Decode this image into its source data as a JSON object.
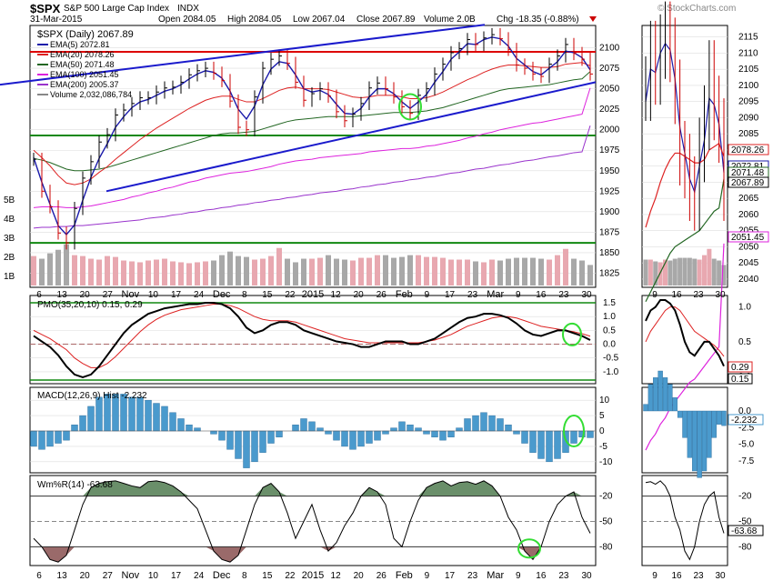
{
  "header": {
    "symbol": "$SPX",
    "name": "S&P 500 Large Cap Index",
    "exchange": "INDX",
    "date": "31-Mar-2015",
    "watermark": "© StockCharts.com",
    "quote": {
      "open": "Open 2084.05",
      "high": "High 2084.05",
      "low": "Low 2067.04",
      "close": "Close 2067.89",
      "volume": "Volume 2.0B",
      "change": "Chg -18.35 (-0.88%)"
    }
  },
  "colors": {
    "ema5": "#1a1aaa",
    "ema20": "#dd2222",
    "ema50": "#226622",
    "ema100": "#dd22dd",
    "ema200": "#9933cc",
    "trendline": "#1a1acc",
    "hline_red": "#dd0000",
    "hline_green": "#118811",
    "volume_up": "#e8a8b0",
    "volume_down": "#a8a8a8",
    "macd_hist": "#4a9acd",
    "wmr_fill": "#6a8f6a",
    "wmr_fill_low": "#9a6a6a",
    "highlight": "#33dd33",
    "panel_bg": "#ffffff"
  },
  "chart_data": [
    {
      "type": "line",
      "panel": "price",
      "title": "$SPX (Daily) 2067.89",
      "legend": [
        {
          "name": "EMA(5) 2072.81",
          "color": "#1a1aaa"
        },
        {
          "name": "EMA(20) 2078.26",
          "color": "#dd2222"
        },
        {
          "name": "EMA(50) 2071.48",
          "color": "#226622"
        },
        {
          "name": "EMA(100) 2051.45",
          "color": "#dd22dd"
        },
        {
          "name": "EMA(200) 2005.37",
          "color": "#9933cc"
        },
        {
          "name": "Volume 2,032,086,784",
          "color": "#888888"
        }
      ],
      "ylim": [
        1810,
        2125
      ],
      "y_ticks": [
        1825,
        1850,
        1875,
        1900,
        1925,
        1950,
        1975,
        2000,
        2025,
        2050,
        2075,
        2100
      ],
      "volume_ticks": [
        "1B",
        "2B",
        "3B",
        "4B",
        "5B"
      ],
      "x_labels": [
        "6",
        "13",
        "20",
        "27",
        "Nov",
        "10",
        "17",
        "24",
        "Dec",
        "8",
        "15",
        "22",
        "2015",
        "12",
        "20",
        "26",
        "Feb",
        "9",
        "17",
        "23",
        "Mar",
        "9",
        "16",
        "23",
        "30"
      ],
      "series": [
        {
          "name": "Close",
          "values": [
            1964,
            1925,
            1906,
            1874,
            1862,
            1904,
            1941,
            1961,
            1985,
            1994,
            2018,
            2024,
            2032,
            2039,
            2039,
            2046,
            2051,
            2052,
            2058,
            2067,
            2072,
            2075,
            2069,
            2060,
            2035,
            2003,
            2000,
            2040,
            2075,
            2086,
            2090,
            2081,
            2058,
            2036,
            2044,
            2050,
            2041,
            2022,
            2011,
            2019,
            2032,
            2051,
            2057,
            2050,
            2040,
            2028,
            2020,
            2042,
            2050,
            2068,
            2080,
            2094,
            2099,
            2110,
            2104,
            2112,
            2116,
            2111,
            2098,
            2079,
            2075,
            2068,
            2065,
            2080,
            2090,
            2104,
            2093,
            2086,
            2068
          ]
        },
        {
          "name": "EMA(5)",
          "values": [
            1966,
            1936,
            1909,
            1883,
            1872,
            1884,
            1914,
            1942,
            1965,
            1983,
            2003,
            2016,
            2027,
            2034,
            2037,
            2042,
            2047,
            2050,
            2055,
            2062,
            2068,
            2072,
            2070,
            2063,
            2047,
            2025,
            2013,
            2029,
            2055,
            2074,
            2083,
            2081,
            2067,
            2050,
            2046,
            2048,
            2043,
            2031,
            2020,
            2019,
            2026,
            2040,
            2050,
            2050,
            2044,
            2034,
            2026,
            2034,
            2043,
            2058,
            2071,
            2086,
            2095,
            2105,
            2104,
            2110,
            2113,
            2111,
            2102,
            2087,
            2079,
            2071,
            2067,
            2075,
            2083,
            2096,
            2094,
            2088,
            2073
          ]
        },
        {
          "name": "EMA(20)",
          "values": [
            1975,
            1966,
            1956,
            1944,
            1935,
            1933,
            1935,
            1940,
            1948,
            1955,
            1964,
            1972,
            1980,
            1988,
            1995,
            2002,
            2008,
            2014,
            2020,
            2026,
            2031,
            2036,
            2039,
            2041,
            2041,
            2037,
            2034,
            2034,
            2038,
            2043,
            2048,
            2051,
            2052,
            2050,
            2050,
            2050,
            2049,
            2046,
            2043,
            2040,
            2039,
            2040,
            2042,
            2042,
            2042,
            2040,
            2038,
            2038,
            2039,
            2042,
            2046,
            2051,
            2056,
            2061,
            2065,
            2070,
            2074,
            2077,
            2079,
            2079,
            2078,
            2077,
            2076,
            2076,
            2077,
            2080,
            2081,
            2082,
            2078
          ]
        },
        {
          "name": "EMA(50)",
          "values": [
            1965,
            1963,
            1960,
            1956,
            1952,
            1950,
            1950,
            1951,
            1952,
            1954,
            1957,
            1960,
            1963,
            1966,
            1969,
            1972,
            1975,
            1978,
            1981,
            1984,
            1987,
            1990,
            1993,
            1995,
            1996,
            1996,
            1997,
            1998,
            2001,
            2004,
            2007,
            2010,
            2012,
            2013,
            2014,
            2015,
            2016,
            2016,
            2016,
            2016,
            2017,
            2018,
            2019,
            2020,
            2021,
            2021,
            2021,
            2022,
            2023,
            2025,
            2027,
            2030,
            2033,
            2036,
            2039,
            2042,
            2045,
            2048,
            2050,
            2051,
            2052,
            2053,
            2054,
            2055,
            2057,
            2059,
            2061,
            2062,
            2071
          ]
        },
        {
          "name": "EMA(100)",
          "values": [
            1905,
            1906,
            1906,
            1906,
            1905,
            1905,
            1906,
            1907,
            1909,
            1911,
            1913,
            1915,
            1918,
            1920,
            1923,
            1925,
            1928,
            1930,
            1933,
            1936,
            1938,
            1941,
            1943,
            1945,
            1947,
            1948,
            1949,
            1951,
            1953,
            1955,
            1958,
            1960,
            1962,
            1963,
            1964,
            1966,
            1967,
            1968,
            1969,
            1970,
            1971,
            1973,
            1974,
            1975,
            1976,
            1977,
            1977,
            1978,
            1980,
            1981,
            1983,
            1985,
            1987,
            1990,
            1992,
            1995,
            1997,
            2000,
            2002,
            2004,
            2006,
            2008,
            2009,
            2011,
            2013,
            2015,
            2017,
            2019,
            2051
          ]
        },
        {
          "name": "EMA(200)",
          "values": [
            1880,
            1881,
            1881,
            1882,
            1882,
            1883,
            1883,
            1884,
            1885,
            1886,
            1887,
            1888,
            1889,
            1890,
            1892,
            1893,
            1894,
            1896,
            1897,
            1899,
            1900,
            1902,
            1903,
            1905,
            1906,
            1908,
            1909,
            1911,
            1912,
            1914,
            1915,
            1917,
            1918,
            1920,
            1921,
            1923,
            1924,
            1925,
            1927,
            1928,
            1930,
            1931,
            1933,
            1934,
            1936,
            1937,
            1939,
            1940,
            1942,
            1943,
            1945,
            1947,
            1948,
            1950,
            1952,
            1953,
            1955,
            1957,
            1958,
            1960,
            1962,
            1963,
            1965,
            1967,
            1968,
            1970,
            1972,
            1973,
            2005
          ]
        }
      ],
      "volume": [
        3.3,
        3.0,
        3.6,
        4.0,
        4.6,
        3.4,
        3.3,
        3.0,
        2.9,
        3.3,
        3.2,
        2.8,
        2.7,
        2.6,
        2.8,
        2.9,
        3.0,
        2.7,
        2.6,
        2.5,
        2.6,
        2.7,
        2.8,
        3.4,
        3.8,
        3.3,
        3.2,
        2.9,
        3.0,
        3.3,
        4.2,
        3.0,
        2.6,
        3.0,
        3.0,
        3.1,
        3.4,
        3.0,
        2.9,
        2.8,
        3.1,
        3.1,
        3.4,
        3.4,
        3.1,
        3.2,
        3.4,
        3.4,
        3.2,
        3.2,
        3.1,
        2.9,
        2.9,
        2.9,
        2.7,
        2.6,
        2.9,
        2.8,
        3.0,
        3.1,
        3.1,
        3.1,
        3.0,
        2.9,
        3.4,
        4.1,
        3.0,
        2.8,
        2.3
      ],
      "hlines": [
        2095,
        1993,
        1862
      ],
      "trendlines": [
        [
          [
            0,
            1925
          ],
          [
            41,
            2110
          ]
        ],
        [
          [
            0,
            2055
          ],
          [
            68,
            2115
          ]
        ]
      ]
    },
    {
      "type": "line",
      "panel": "pmo",
      "title": "PMO(35,20,10) 0.15, 0.29",
      "ylim": [
        -1.3,
        1.6
      ],
      "y_ticks": [
        1.5,
        1.0,
        0.5,
        0.0,
        -0.5,
        -1.0
      ],
      "series": [
        {
          "name": "PMO",
          "values": [
            0.3,
            0.1,
            -0.1,
            -0.4,
            -0.8,
            -1.1,
            -1.2,
            -1.1,
            -0.8,
            -0.4,
            0.0,
            0.4,
            0.7,
            0.9,
            1.1,
            1.2,
            1.3,
            1.35,
            1.4,
            1.45,
            1.45,
            1.5,
            1.5,
            1.45,
            1.3,
            1.0,
            0.6,
            0.4,
            0.5,
            0.7,
            0.8,
            0.8,
            0.7,
            0.5,
            0.4,
            0.3,
            0.2,
            0.1,
            0.05,
            0.0,
            -0.1,
            -0.1,
            0.0,
            0.1,
            0.1,
            0.1,
            0.0,
            0.0,
            0.1,
            0.2,
            0.4,
            0.6,
            0.8,
            0.95,
            1.0,
            1.1,
            1.1,
            1.05,
            0.95,
            0.75,
            0.5,
            0.35,
            0.3,
            0.4,
            0.5,
            0.5,
            0.4,
            0.3,
            0.15
          ]
        },
        {
          "name": "Signal",
          "values": [
            0.5,
            0.35,
            0.2,
            0.0,
            -0.2,
            -0.5,
            -0.7,
            -0.85,
            -0.85,
            -0.7,
            -0.45,
            -0.15,
            0.15,
            0.45,
            0.7,
            0.9,
            1.05,
            1.15,
            1.25,
            1.3,
            1.35,
            1.4,
            1.45,
            1.45,
            1.4,
            1.3,
            1.15,
            1.0,
            0.9,
            0.85,
            0.85,
            0.85,
            0.8,
            0.7,
            0.6,
            0.5,
            0.4,
            0.3,
            0.2,
            0.15,
            0.1,
            0.05,
            0.05,
            0.05,
            0.05,
            0.05,
            0.05,
            0.05,
            0.1,
            0.15,
            0.25,
            0.35,
            0.5,
            0.65,
            0.75,
            0.85,
            0.95,
            1.0,
            1.0,
            0.95,
            0.85,
            0.75,
            0.65,
            0.6,
            0.55,
            0.5,
            0.45,
            0.38,
            0.29
          ]
        }
      ],
      "hlines": [
        1.5,
        0.0,
        -1.3
      ]
    },
    {
      "type": "bar",
      "panel": "macd",
      "title": "MACD(12,26,9) Hist -2.232",
      "ylim": [
        -13,
        13
      ],
      "y_ticks": [
        10,
        5.0,
        0,
        -5.0,
        -10
      ],
      "values": [
        -5,
        -6,
        -5,
        -4,
        -3,
        2,
        5,
        8,
        11,
        12,
        12,
        12,
        11,
        11,
        10,
        9,
        8,
        6,
        4,
        2,
        1,
        0,
        -1,
        -3,
        -6,
        -9,
        -12,
        -10,
        -7,
        -4,
        -2,
        0,
        2,
        4,
        3,
        1,
        -1,
        -3,
        -5,
        -6,
        -5,
        -4,
        -3,
        -1,
        1,
        3,
        2,
        1,
        -1,
        -2,
        -3,
        -2,
        1,
        4,
        5,
        6,
        5,
        4,
        2,
        -1,
        -4,
        -7,
        -9,
        -10,
        -9,
        -7,
        -4,
        -2,
        -2.2
      ]
    },
    {
      "type": "line",
      "panel": "williams",
      "title": "Wm%R(14) -63.68",
      "ylim": [
        -100,
        0
      ],
      "y_ticks": [
        -20,
        -50,
        -80
      ],
      "series": [
        {
          "name": "Wm%R",
          "values": [
            -70,
            -80,
            -95,
            -98,
            -90,
            -60,
            -30,
            -10,
            -5,
            -3,
            -2,
            -5,
            -8,
            -10,
            -3,
            -2,
            -4,
            -8,
            -15,
            -25,
            -35,
            -60,
            -85,
            -95,
            -98,
            -90,
            -60,
            -30,
            -10,
            -5,
            -15,
            -40,
            -70,
            -50,
            -30,
            -60,
            -85,
            -75,
            -55,
            -40,
            -20,
            -10,
            -15,
            -30,
            -70,
            -80,
            -50,
            -25,
            -10,
            -5,
            -2,
            -8,
            -4,
            -3,
            -6,
            -2,
            -8,
            -20,
            -45,
            -60,
            -85,
            -95,
            -80,
            -50,
            -30,
            -20,
            -15,
            -45,
            -64
          ]
        }
      ],
      "hlines": [
        -20,
        -50,
        -80
      ]
    },
    {
      "type": "line",
      "panel": "zoom",
      "title": "",
      "x_labels": [
        "9",
        "16",
        "23",
        "30"
      ],
      "price_ticks": [
        2040,
        2045,
        2050,
        2055,
        2060,
        2065,
        2070,
        2075,
        2080,
        2085,
        2090,
        2095,
        2100,
        2105,
        2110,
        2115
      ],
      "price_labels": [
        "2078.26",
        "2072.81",
        "2071.48",
        "2067.89",
        "2051.45"
      ],
      "pmo_ticks": [
        1.0,
        0.5,
        0.0
      ],
      "pmo_labels": [
        "0.29",
        "0.15"
      ],
      "macd_ticks": [
        0.0,
        -2.5,
        -5.0,
        -7.5
      ],
      "macd_label": "-2.232",
      "wmr_ticks": [
        -20,
        -50,
        -80
      ],
      "wmr_label": "-63.68"
    }
  ]
}
